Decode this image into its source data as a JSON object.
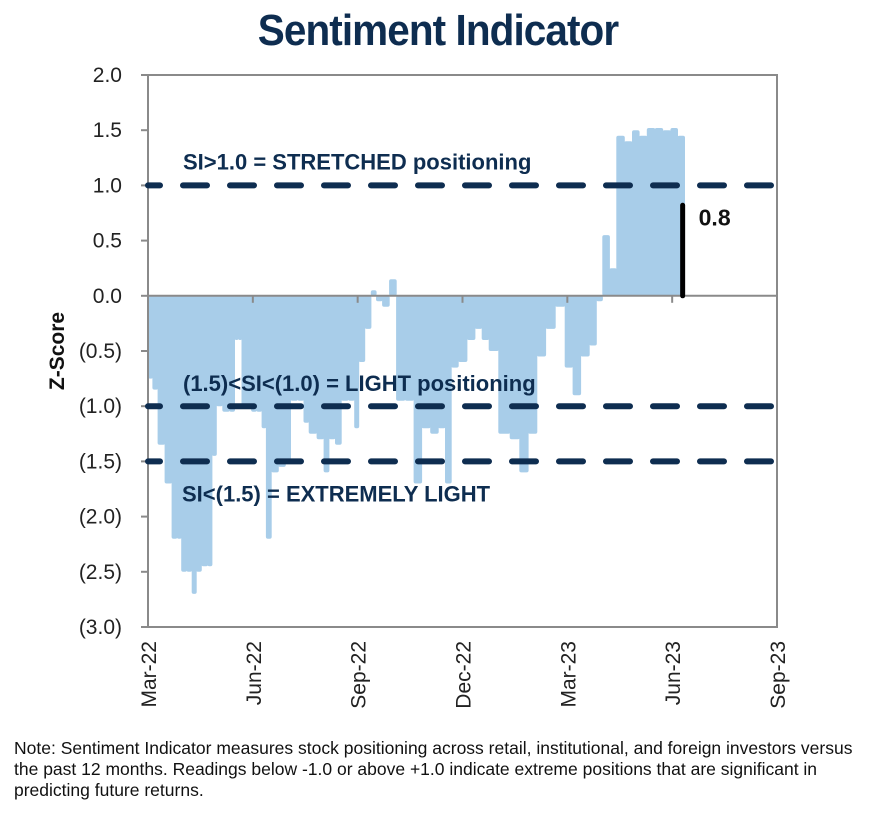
{
  "chart_data": {
    "type": "area",
    "title": "Sentiment Indicator",
    "xlabel": "",
    "ylabel": "Z-Score",
    "ylim": [
      -3.0,
      2.0
    ],
    "yticks": [
      2.0,
      1.5,
      1.0,
      0.5,
      0.0,
      -0.5,
      -1.0,
      -1.5,
      -2.0,
      -2.5,
      -3.0
    ],
    "ytick_labels": [
      "2.0",
      "1.5",
      "1.0",
      "0.5",
      "0.0",
      "(0.5)",
      "(1.0)",
      "(1.5)",
      "(2.0)",
      "(2.5)",
      "(3.0)"
    ],
    "x_unit": "months since Mar-22",
    "xlim": [
      0,
      18
    ],
    "xticks": [
      0,
      3,
      6,
      9,
      12,
      15,
      18
    ],
    "xtick_labels": [
      "Mar-22",
      "Jun-22",
      "Sep-22",
      "Dec-22",
      "Mar-23",
      "Jun-23",
      "Sep-23"
    ],
    "grid": false,
    "legend": "none",
    "series": [
      {
        "name": "Sentiment Indicator",
        "color": "#a8cde9",
        "points": [
          [
            0.05,
            -0.75
          ],
          [
            0.2,
            -0.85
          ],
          [
            0.35,
            -1.35
          ],
          [
            0.6,
            -1.7
          ],
          [
            0.75,
            -2.2
          ],
          [
            0.9,
            -2.2
          ],
          [
            1.0,
            -2.5
          ],
          [
            1.2,
            -2.5
          ],
          [
            1.3,
            -2.7
          ],
          [
            1.45,
            -2.5
          ],
          [
            1.6,
            -2.45
          ],
          [
            1.8,
            -2.45
          ],
          [
            1.85,
            -1.45
          ],
          [
            2.05,
            -1.0
          ],
          [
            2.2,
            -1.05
          ],
          [
            2.45,
            -1.05
          ],
          [
            2.5,
            -0.4
          ],
          [
            2.65,
            -0.4
          ],
          [
            2.7,
            -1.0
          ],
          [
            2.9,
            -1.0
          ],
          [
            3.0,
            -1.05
          ],
          [
            3.2,
            -1.05
          ],
          [
            3.3,
            -1.2
          ],
          [
            3.45,
            -2.2
          ],
          [
            3.6,
            -1.6
          ],
          [
            3.85,
            -1.55
          ],
          [
            4.0,
            -1.5
          ],
          [
            4.15,
            -0.95
          ],
          [
            4.4,
            -0.95
          ],
          [
            4.5,
            -1.15
          ],
          [
            4.7,
            -1.25
          ],
          [
            4.95,
            -1.3
          ],
          [
            5.1,
            -1.6
          ],
          [
            5.25,
            -1.3
          ],
          [
            5.45,
            -1.35
          ],
          [
            5.6,
            -0.95
          ],
          [
            5.85,
            -0.95
          ],
          [
            5.95,
            -1.2
          ],
          [
            6.1,
            -0.6
          ],
          [
            6.3,
            -0.3
          ],
          [
            6.45,
            0.05
          ],
          [
            6.6,
            -0.05
          ],
          [
            6.8,
            -0.1
          ],
          [
            7.0,
            0.15
          ],
          [
            7.2,
            -0.95
          ],
          [
            7.5,
            -0.95
          ],
          [
            7.7,
            -1.7
          ],
          [
            7.95,
            -1.2
          ],
          [
            8.2,
            -1.25
          ],
          [
            8.4,
            -1.2
          ],
          [
            8.6,
            -1.7
          ],
          [
            8.75,
            -0.65
          ],
          [
            9.0,
            -0.6
          ],
          [
            9.25,
            -0.4
          ],
          [
            9.45,
            -0.3
          ],
          [
            9.65,
            -0.4
          ],
          [
            9.85,
            -0.5
          ],
          [
            10.2,
            -1.25
          ],
          [
            10.5,
            -1.3
          ],
          [
            10.75,
            -1.6
          ],
          [
            11.0,
            -1.25
          ],
          [
            11.25,
            -0.55
          ],
          [
            11.5,
            -0.3
          ],
          [
            11.8,
            -0.1
          ],
          [
            12.05,
            -0.65
          ],
          [
            12.25,
            -0.9
          ],
          [
            12.5,
            -0.55
          ],
          [
            12.75,
            -0.45
          ],
          [
            12.9,
            -0.05
          ],
          [
            13.1,
            0.55
          ],
          [
            13.3,
            0.25
          ],
          [
            13.5,
            1.45
          ],
          [
            13.75,
            1.4
          ],
          [
            13.95,
            1.5
          ],
          [
            14.15,
            1.45
          ],
          [
            14.4,
            1.52
          ],
          [
            14.6,
            1.52
          ],
          [
            14.85,
            1.5
          ],
          [
            15.05,
            1.52
          ],
          [
            15.25,
            1.45
          ]
        ]
      }
    ],
    "reference_lines": [
      {
        "y": 1.0,
        "style": "dashed",
        "color": "#0e2d50",
        "label": "SI>1.0 = STRETCHED positioning"
      },
      {
        "y": -1.0,
        "style": "dashed",
        "color": "#0e2d50",
        "label": "(1.5)<SI<(1.0) = LIGHT positioning"
      },
      {
        "y": -1.5,
        "style": "dashed",
        "color": "#0e2d50",
        "label": "SI<(1.5) = EXTREMELY LIGHT"
      }
    ],
    "annotations": [
      {
        "type": "callout-bar",
        "x": 15.3,
        "y_from": 0.0,
        "y_to": 0.82,
        "color": "#000000",
        "label": "0.8"
      }
    ]
  },
  "note": "Note: Sentiment Indicator measures stock positioning across retail, institutional, and foreign investors versus the past 12 months. Readings below -1.0 or above +1.0 indicate extreme positions that are significant in predicting future returns.",
  "colors": {
    "title": "#0e2d50",
    "bars": "#a8cde9",
    "ref_lines": "#0e2d50",
    "axis": "#8a8a8a"
  }
}
